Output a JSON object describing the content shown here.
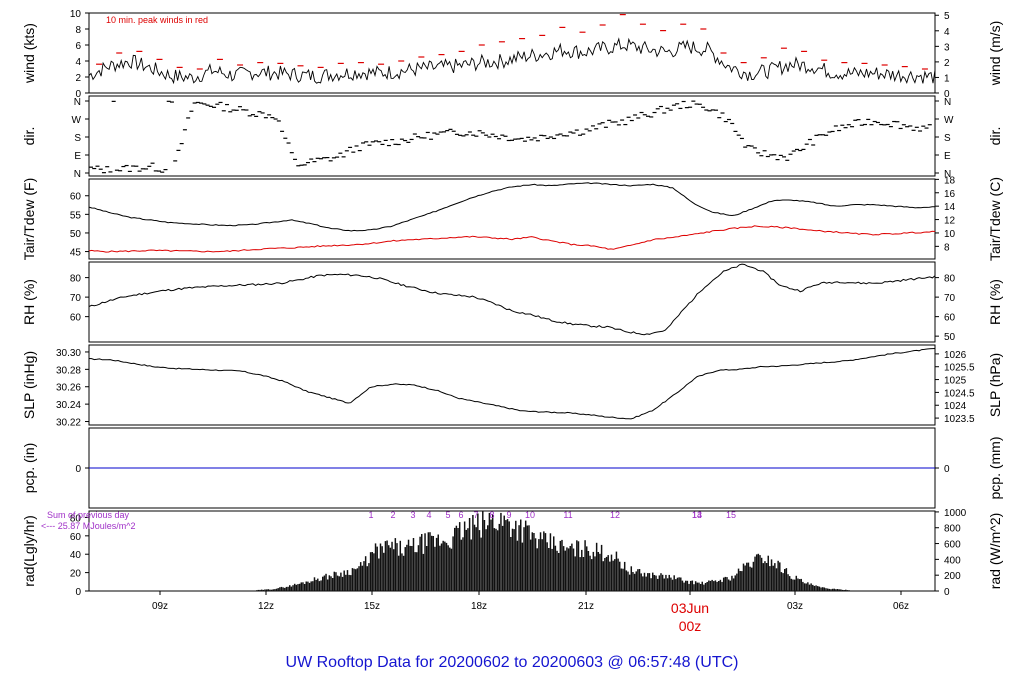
{
  "title": "UW Rooftop Data for 20200602  to  20200603 @ 06:57:48  (UTC)",
  "colors": {
    "title": "#1515d0",
    "peak": "#dd0000",
    "dew": "#dd0000",
    "precip": "#0000cc",
    "rad_note": "#a030c8",
    "date_marker": "#dd0000",
    "line": "#000000"
  },
  "time_axis": {
    "ticks": [
      "09z",
      "12z",
      "15z",
      "18z",
      "21z",
      "03z",
      "06z"
    ],
    "date_line1": "03Jun",
    "date_line2": "00z"
  },
  "chart_data": [
    {
      "type": "line",
      "panel": "wind",
      "ylabel_left": "wind (kts)",
      "ylabel_right": "wind (m/s)",
      "left_ticks": [
        "10",
        "8",
        "6",
        "4",
        "2",
        "0"
      ],
      "right_ticks": [
        "5",
        "4",
        "3",
        "2",
        "1",
        "0"
      ],
      "ylim": [
        0,
        10
      ],
      "annotation": "10 min. peak winds in red",
      "series": [
        {
          "values": [
            2.2,
            3.4,
            4,
            3.1,
            2.1,
            1.9,
            2.8,
            2.2,
            2.6,
            2.5,
            2.3,
            2.1,
            2.4,
            2.6,
            2.5,
            2.7,
            3,
            3.2,
            3.4,
            3.8,
            4,
            4.5,
            4.9,
            5.4,
            5.1,
            5.6,
            6,
            5.5,
            5.1,
            5.8,
            5.4,
            3.3,
            2.4,
            2.8,
            3.6,
            3.4,
            2.6,
            2.4,
            2.5,
            2.3,
            2.2,
            2
          ]
        }
      ],
      "peak_values": [
        3.6,
        5,
        5.2,
        4.2,
        3.2,
        3,
        4.2,
        3.5,
        3.8,
        3.7,
        3.4,
        3.2,
        3.7,
        3.8,
        3.6,
        4,
        4.5,
        4.8,
        5.2,
        6,
        6.4,
        6.8,
        7.2,
        8.2,
        7.6,
        8.5,
        9.8,
        8.6,
        7.8,
        8.6,
        8,
        5,
        3.8,
        4.4,
        5.6,
        5.2,
        4.1,
        3.8,
        3.7,
        3.5,
        3.3,
        3
      ]
    },
    {
      "type": "scatter",
      "panel": "dir",
      "ylabel_left": "dir.",
      "ylabel_right": "dir.",
      "left_ticks": [
        "N",
        "W",
        "S",
        "E",
        "N"
      ],
      "right_ticks": [
        "N",
        "W",
        "S",
        "E",
        "N"
      ],
      "ylim": [
        0,
        360
      ],
      "values": [
        20,
        15,
        25,
        30,
        10,
        350,
        340,
        320,
        300,
        285,
        40,
        60,
        80,
        130,
        150,
        160,
        180,
        195,
        205,
        200,
        185,
        170,
        180,
        200,
        210,
        240,
        260,
        290,
        320,
        345,
        330,
        270,
        120,
        90,
        80,
        150,
        210,
        240,
        260,
        250,
        230,
        220
      ]
    },
    {
      "type": "line",
      "panel": "temperature",
      "ylabel_left": "Tair/Tdew (F)",
      "ylabel_right": "Tair/Tdew (C)",
      "left_ticks": [
        "60",
        "55",
        "50",
        "45"
      ],
      "right_ticks": [
        "18",
        "16",
        "14",
        "12",
        "10",
        "8"
      ],
      "ylim": [
        43,
        64.5
      ],
      "series": [
        {
          "values": [
            57,
            55.5,
            54.2,
            53.5,
            52.8,
            52.5,
            52.2,
            52,
            52.2,
            52.8,
            53.5,
            52.5,
            51.2,
            50.6,
            50.8,
            51.8,
            53.6,
            55.4,
            57.5,
            59.5,
            61.2,
            62.4,
            63,
            62.7,
            63.2,
            63.4,
            63,
            62.7,
            63.1,
            62.1,
            58,
            55.5,
            54.6,
            56.7,
            58.8,
            58.8,
            58.2,
            57.2,
            57.6,
            57.6,
            57.2,
            56.8,
            57
          ]
        },
        {
          "values": [
            45.2,
            45,
            45.1,
            45.3,
            45.2,
            45.1,
            45,
            45.1,
            45.5,
            45.8,
            46,
            46.3,
            46.6,
            46.8,
            47.2,
            47.8,
            48.2,
            48.4,
            48.8,
            49,
            48.7,
            48.3,
            48.9,
            47.8,
            46.9,
            46.5,
            45.5,
            46.8,
            48.2,
            48.8,
            49.6,
            50.5,
            51.2,
            51.8,
            51.6,
            51.3,
            50.6,
            50.3,
            49.8,
            49.6,
            49.8,
            50.1,
            50.3
          ]
        }
      ]
    },
    {
      "type": "line",
      "panel": "rh",
      "ylabel_left": "RH (%)",
      "ylabel_right": "RH (%)",
      "left_ticks": [
        "80",
        "70",
        "60"
      ],
      "right_ticks": [
        "80",
        "70",
        "60",
        "50"
      ],
      "ylim": [
        47,
        88
      ],
      "series": [
        {
          "values": [
            65,
            68,
            70.5,
            72,
            73.5,
            74.5,
            75.2,
            75.8,
            76.2,
            76.6,
            77.2,
            79,
            81.1,
            81.6,
            81.2,
            79.8,
            77,
            74.5,
            72.2,
            71,
            70.2,
            67,
            63,
            61,
            58.2,
            56.4,
            55.3,
            54.6,
            52.2,
            51,
            53,
            64.5,
            75.2,
            83,
            86.8,
            83.5,
            75.7,
            73.2,
            77,
            77.9,
            77.2,
            77.2,
            78.3,
            79.4,
            80.5
          ]
        }
      ]
    },
    {
      "type": "line",
      "panel": "slp",
      "ylabel_left": "SLP (inHg)",
      "ylabel_right": "SLP (hPa)",
      "left_ticks": [
        "30.30",
        "30.28",
        "30.26",
        "30.24",
        "30.22"
      ],
      "right_ticks": [
        "1026",
        "1025.5",
        "1025",
        "1024.5",
        "1024",
        "1023.5"
      ],
      "ylim": [
        30.216,
        30.308
      ],
      "series": [
        {
          "values": [
            30.292,
            30.291,
            30.287,
            30.283,
            30.281,
            30.28,
            30.279,
            30.278,
            30.273,
            30.266,
            30.255,
            30.248,
            30.241,
            30.26,
            30.263,
            30.262,
            30.256,
            30.247,
            30.242,
            30.237,
            30.232,
            30.231,
            30.23,
            30.228,
            30.225,
            30.223,
            30.233,
            30.251,
            30.271,
            30.279,
            30.28,
            30.283,
            30.284,
            30.286,
            30.288,
            30.29,
            30.294,
            30.298,
            30.301,
            30.304
          ]
        }
      ]
    },
    {
      "type": "line",
      "panel": "precip",
      "ylabel_left": "pcp. (in)",
      "ylabel_right": "pcp. (mm)",
      "left_ticks": [
        "0"
      ],
      "right_ticks": [
        "0"
      ],
      "ylim": [
        -1,
        1
      ],
      "series": [
        {
          "values": [
            0,
            0
          ]
        }
      ]
    },
    {
      "type": "bar",
      "panel": "radiation",
      "ylabel_left": "rad(Lgly/hr)",
      "ylabel_right": "rad (W/m^2)",
      "left_ticks": [
        "80",
        "60",
        "40",
        "20",
        "0"
      ],
      "right_ticks": [
        "1000",
        "800",
        "600",
        "400",
        "200",
        "0"
      ],
      "ylim": [
        0,
        87
      ],
      "note_line1": "Sum of previous day",
      "note_line2": "<--- 25.87 MJoules/m^2",
      "hour_labels": [
        "1",
        "2",
        "3",
        "4",
        "5",
        "6",
        "7",
        "8",
        "9",
        "10",
        "11",
        "12",
        "13",
        "14",
        "15"
      ],
      "values": [
        1,
        2,
        5,
        9,
        14,
        18,
        22,
        28,
        46,
        52,
        48,
        55,
        58,
        60,
        72,
        75,
        84,
        80,
        72,
        58,
        55,
        48,
        50,
        46,
        42,
        25,
        20,
        18,
        16,
        11,
        9,
        12,
        16,
        30,
        40,
        32,
        18,
        9,
        4,
        2,
        1
      ]
    }
  ]
}
